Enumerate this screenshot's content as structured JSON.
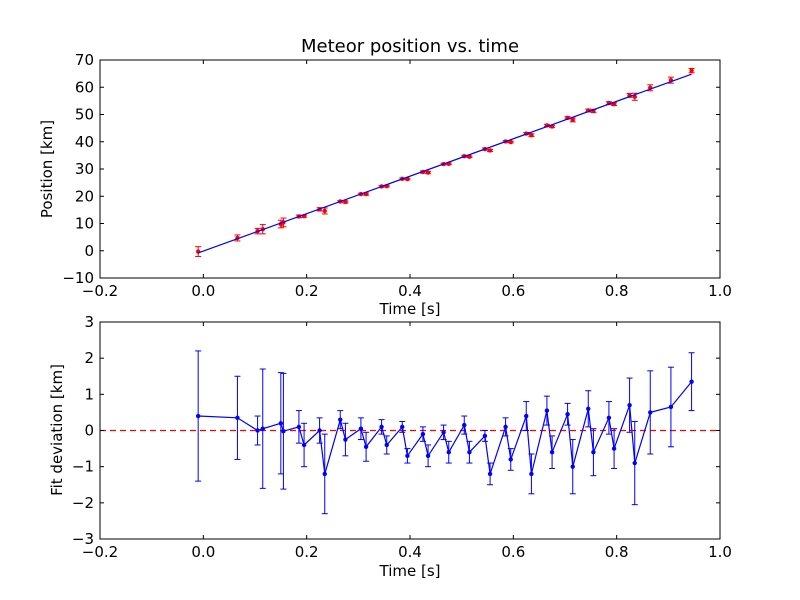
{
  "chart_data": [
    {
      "type": "scatter",
      "title": "Meteor position vs. time",
      "xlabel": "Time [s]",
      "ylabel": "Position [km]",
      "xlim": [
        -0.2,
        1.0
      ],
      "ylim": [
        -10,
        70
      ],
      "xticks": [
        "−0.2",
        "0.0",
        "0.2",
        "0.4",
        "0.6",
        "0.8",
        "1.0"
      ],
      "yticks": [
        "−10",
        "0",
        "10",
        "20",
        "30",
        "40",
        "50",
        "60",
        "70"
      ],
      "grid": false,
      "series": [
        {
          "kind": "errorbar-points",
          "color": "#ff0000",
          "x": [
            -0.01,
            0.066,
            0.105,
            0.115,
            0.15,
            0.155,
            0.185,
            0.195,
            0.225,
            0.235,
            0.265,
            0.275,
            0.305,
            0.315,
            0.345,
            0.355,
            0.385,
            0.395,
            0.425,
            0.435,
            0.465,
            0.475,
            0.505,
            0.515,
            0.545,
            0.555,
            0.585,
            0.595,
            0.625,
            0.635,
            0.665,
            0.675,
            0.705,
            0.715,
            0.745,
            0.755,
            0.785,
            0.795,
            0.825,
            0.835,
            0.865,
            0.905,
            0.945
          ],
          "y": [
            -0.3,
            4.7,
            7.2,
            7.9,
            9.8,
            10.4,
            12.6,
            12.7,
            15.2,
            14.6,
            18.1,
            17.9,
            20.8,
            20.8,
            23.6,
            23.7,
            26.4,
            26.3,
            28.9,
            28.7,
            31.8,
            31.9,
            34.7,
            34.5,
            37.3,
            36.8,
            40.1,
            39.9,
            43.0,
            42.4,
            46.0,
            45.6,
            48.8,
            48.0,
            51.5,
            51.3,
            54.2,
            53.8,
            57.0,
            56.5,
            59.8,
            62.6,
            66.1
          ],
          "err": [
            1.8,
            1.1,
            1.0,
            1.7,
            1.4,
            1.6,
            0.5,
            0.4,
            0.6,
            1.1,
            0.3,
            0.4,
            0.3,
            0.4,
            0.3,
            0.3,
            0.3,
            0.3,
            0.4,
            0.4,
            0.3,
            0.3,
            0.3,
            0.3,
            0.4,
            0.4,
            0.3,
            0.3,
            0.4,
            0.5,
            0.4,
            0.4,
            0.4,
            0.7,
            0.5,
            0.6,
            0.5,
            0.5,
            0.7,
            1.3,
            1.1,
            1.1,
            0.8
          ]
        },
        {
          "kind": "fit-line",
          "color": "#0000ff",
          "x": [
            -0.01,
            0.945
          ],
          "y": [
            -0.8,
            64.8
          ]
        }
      ]
    },
    {
      "type": "line",
      "xlabel": "Time [s]",
      "ylabel": "Fit deviation [km]",
      "xlim": [
        -0.2,
        1.0
      ],
      "ylim": [
        -3,
        3
      ],
      "xticks": [
        "−0.2",
        "0.0",
        "0.2",
        "0.4",
        "0.6",
        "0.8",
        "1.0"
      ],
      "yticks": [
        "−3",
        "−2",
        "−1",
        "0",
        "1",
        "2",
        "3"
      ],
      "grid": false,
      "reference_line": {
        "y": 0,
        "color": "#ff0000",
        "style": "dashed"
      },
      "series": [
        {
          "kind": "errorbar-line",
          "color": "#0000ff",
          "x": [
            -0.01,
            0.066,
            0.105,
            0.115,
            0.15,
            0.155,
            0.185,
            0.195,
            0.225,
            0.235,
            0.265,
            0.275,
            0.305,
            0.315,
            0.345,
            0.355,
            0.385,
            0.395,
            0.425,
            0.435,
            0.465,
            0.475,
            0.505,
            0.515,
            0.545,
            0.555,
            0.585,
            0.595,
            0.625,
            0.635,
            0.665,
            0.675,
            0.705,
            0.715,
            0.745,
            0.755,
            0.785,
            0.795,
            0.825,
            0.835,
            0.865,
            0.905,
            0.945
          ],
          "y": [
            0.4,
            0.35,
            0.0,
            0.05,
            0.2,
            -0.02,
            0.1,
            -0.4,
            0.0,
            -1.2,
            0.3,
            -0.25,
            0.05,
            -0.45,
            0.1,
            -0.4,
            0.1,
            -0.7,
            -0.1,
            -0.7,
            -0.05,
            -0.6,
            0.15,
            -0.6,
            -0.15,
            -1.2,
            0.1,
            -0.8,
            0.4,
            -1.2,
            0.55,
            -0.6,
            0.45,
            -1.0,
            0.6,
            -0.6,
            0.35,
            -0.5,
            0.7,
            -0.9,
            0.5,
            0.65,
            1.35
          ],
          "err": [
            1.8,
            1.15,
            0.4,
            1.65,
            1.4,
            1.6,
            0.45,
            0.6,
            0.35,
            1.1,
            0.25,
            0.45,
            0.3,
            0.4,
            0.2,
            0.25,
            0.15,
            0.2,
            0.2,
            0.3,
            0.2,
            0.3,
            0.25,
            0.3,
            0.15,
            0.3,
            0.25,
            0.3,
            0.4,
            0.55,
            0.4,
            0.45,
            0.3,
            0.75,
            0.5,
            0.65,
            0.45,
            0.55,
            0.75,
            1.15,
            1.15,
            1.1,
            0.8
          ]
        }
      ]
    }
  ]
}
